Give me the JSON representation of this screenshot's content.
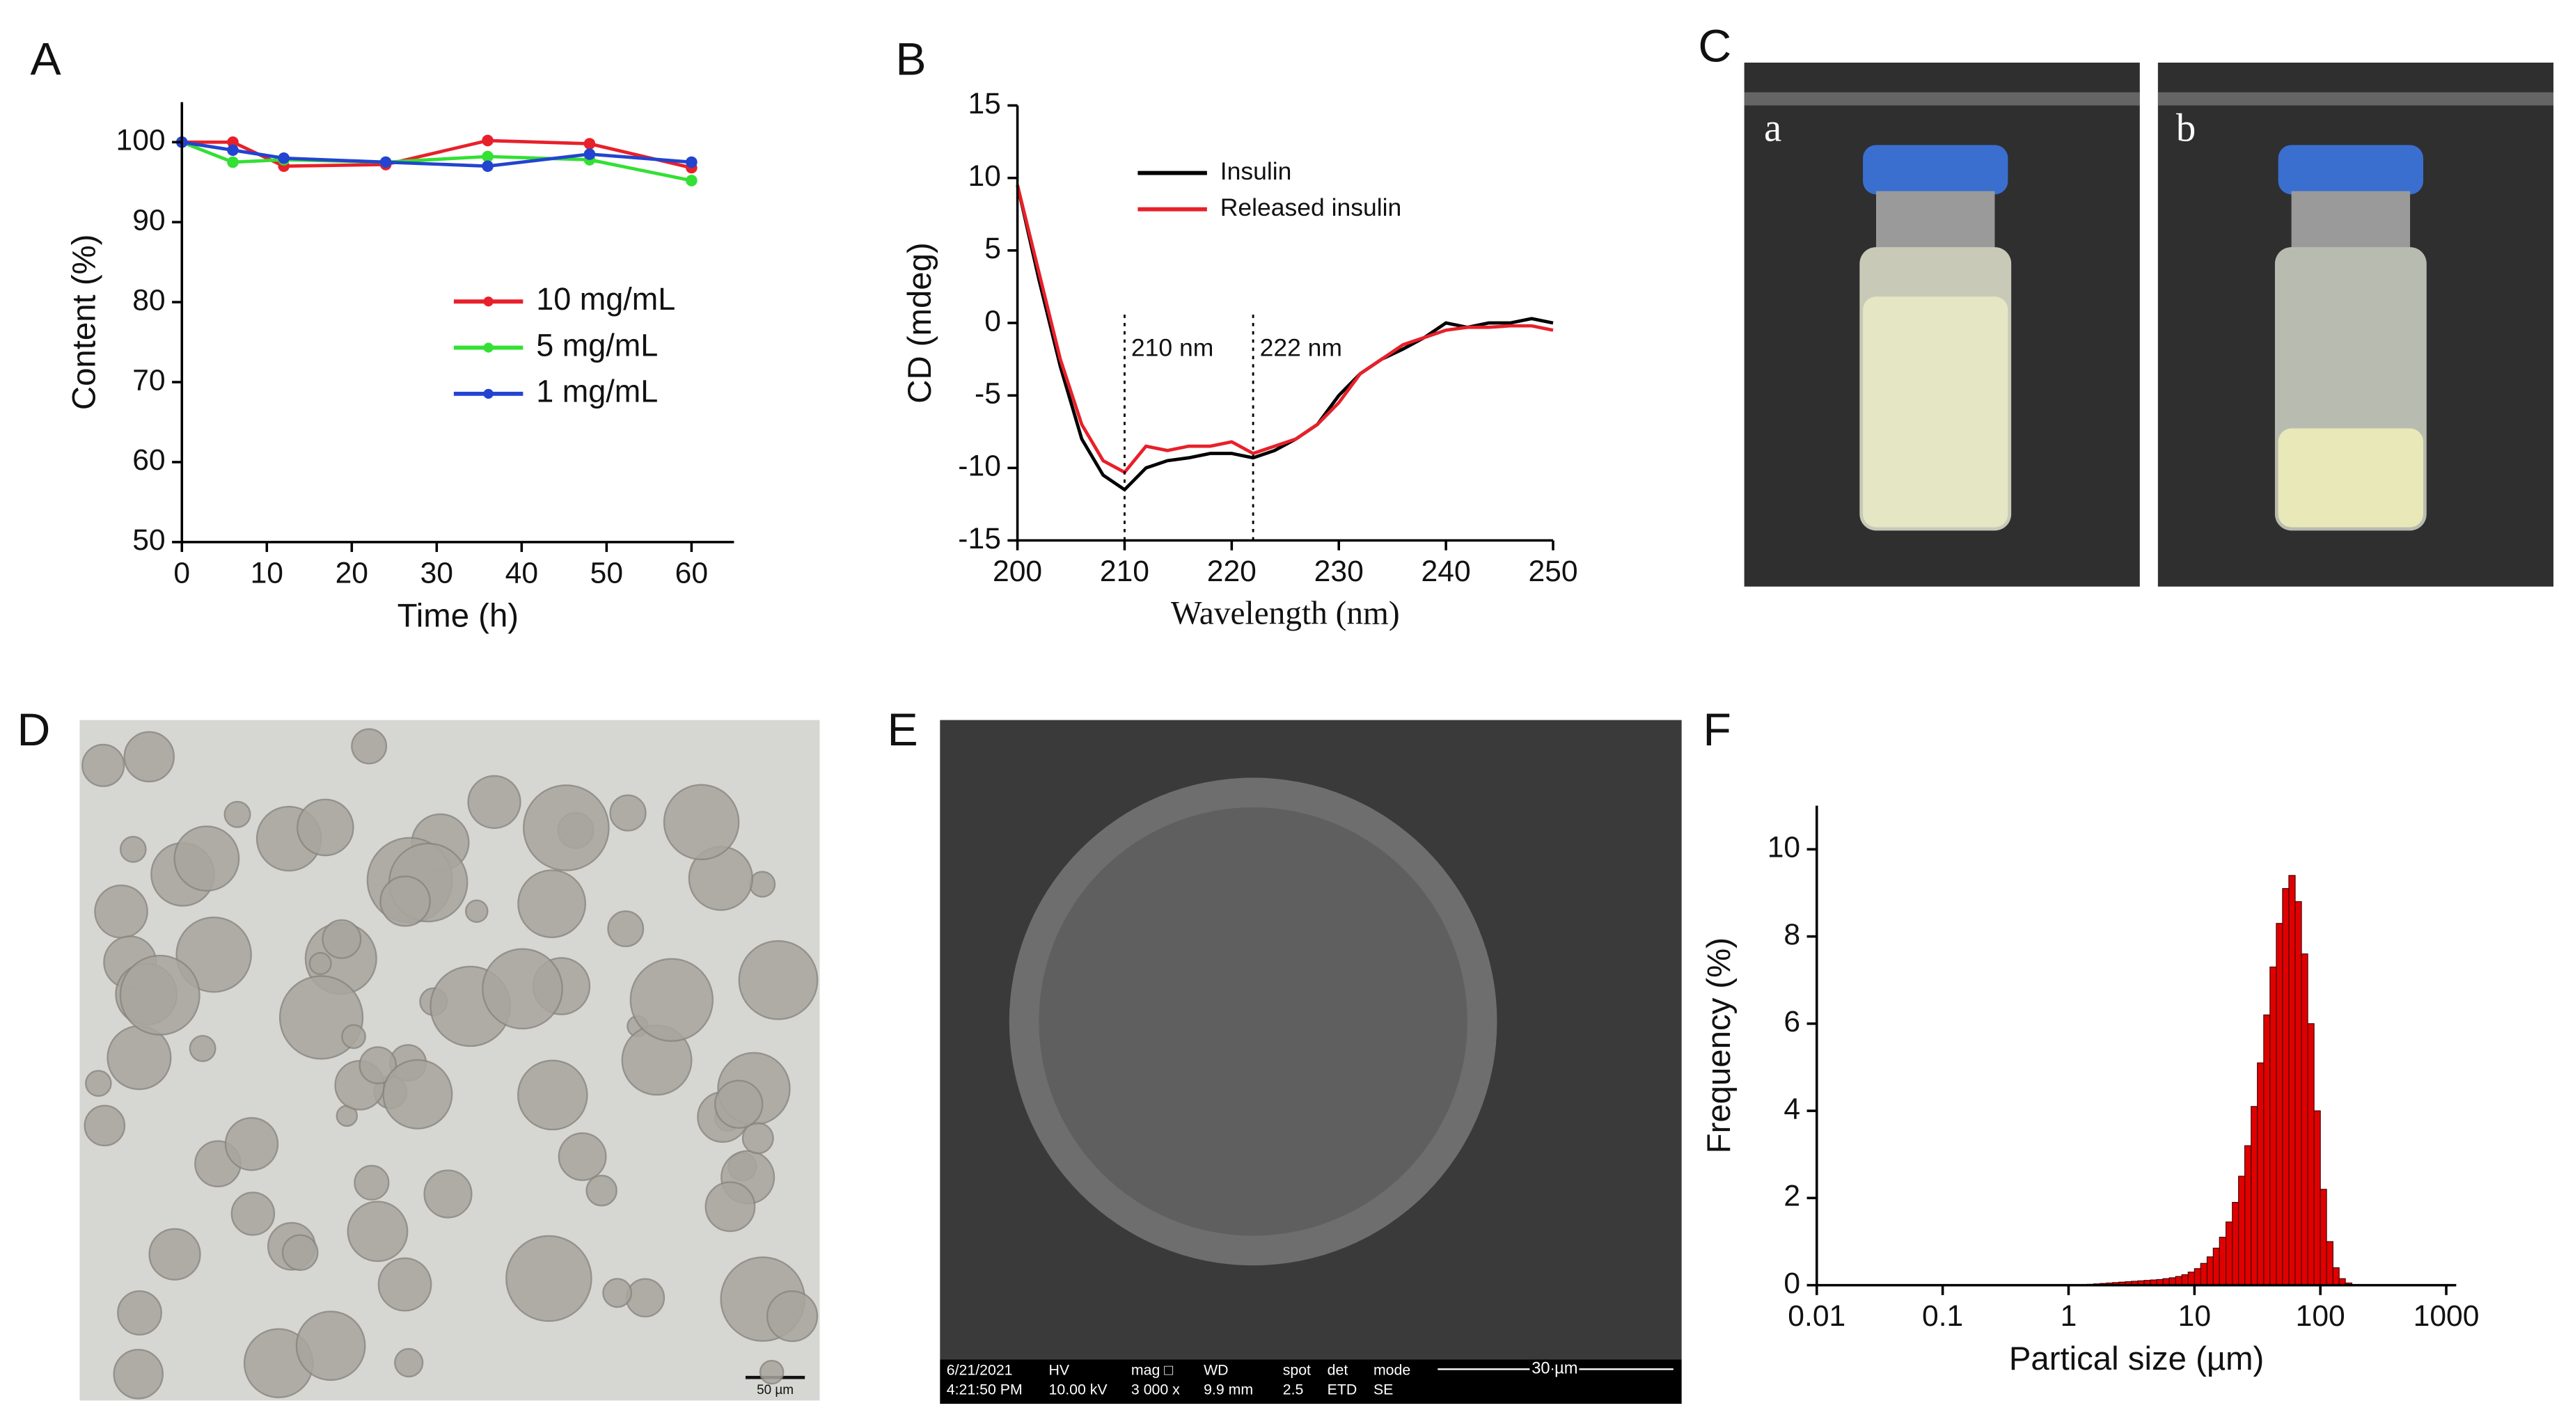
{
  "panel_labels": [
    "A",
    "B",
    "C",
    "D",
    "E",
    "F"
  ],
  "chart_data": [
    {
      "type": "line",
      "markers": true,
      "xlabel": "Time (h)",
      "ylabel": "Content (%)",
      "x": [
        0,
        6,
        12,
        24,
        36,
        48,
        60
      ],
      "series": [
        {
          "name": "10 mg/mL",
          "color": "#e8202a",
          "values": [
            100,
            100,
            97,
            97.2,
            100.2,
            99.8,
            96.8
          ]
        },
        {
          "name": "5 mg/mL",
          "color": "#33e033",
          "values": [
            100,
            97.5,
            97.8,
            97.5,
            98.2,
            97.8,
            95.2
          ]
        },
        {
          "name": "1 mg/mL",
          "color": "#2244d0",
          "values": [
            100,
            99,
            98,
            97.5,
            97,
            98.5,
            97.5
          ]
        }
      ],
      "xlim": [
        0,
        65
      ],
      "xticks": [
        0,
        10,
        20,
        30,
        40,
        50,
        60
      ],
      "ylim": [
        50,
        105
      ],
      "yticks": [
        50,
        60,
        70,
        80,
        90,
        100
      ],
      "legend": "right"
    },
    {
      "type": "line",
      "markers": false,
      "xlabel": "Wavelength (nm)",
      "ylabel": "CD (mdeg)",
      "x": [
        200,
        202,
        204,
        206,
        208,
        210,
        212,
        214,
        216,
        218,
        220,
        222,
        224,
        226,
        228,
        230,
        232,
        234,
        236,
        238,
        240,
        242,
        244,
        246,
        248,
        250
      ],
      "series": [
        {
          "name": "Insulin",
          "color": "#000000",
          "values": [
            9.5,
            3,
            -3,
            -8,
            -10.5,
            -11.5,
            -10,
            -9.5,
            -9.3,
            -9,
            -9,
            -9.3,
            -8.8,
            -8,
            -7,
            -5,
            -3.5,
            -2.5,
            -1.8,
            -1,
            0,
            -0.3,
            0,
            0,
            0.3,
            0
          ]
        },
        {
          "name": "Released insulin",
          "color": "#e8202a",
          "values": [
            9.5,
            3.5,
            -2.5,
            -7,
            -9.5,
            -10.3,
            -8.5,
            -8.8,
            -8.5,
            -8.5,
            -8.2,
            -9,
            -8.5,
            -8,
            -7,
            -5.5,
            -3.5,
            -2.5,
            -1.5,
            -1,
            -0.5,
            -0.3,
            -0.3,
            -0.2,
            -0.2,
            -0.5
          ]
        }
      ],
      "xlim": [
        200,
        250
      ],
      "xticks": [
        200,
        210,
        220,
        230,
        240,
        250
      ],
      "ylim": [
        -15,
        15
      ],
      "yticks": [
        -15,
        -10,
        -5,
        0,
        5,
        10,
        15
      ],
      "legend": "top",
      "annotations": [
        {
          "x": 210,
          "label": "210 nm"
        },
        {
          "x": 222,
          "label": "222 nm"
        }
      ]
    },
    {
      "type": "histogram",
      "xscale": "log",
      "color": "#e00000",
      "xlabel": "Partical size (µm)",
      "ylabel": "Frequency (%)",
      "bins": [
        1,
        1.12,
        1.26,
        1.41,
        1.58,
        1.78,
        2,
        2.24,
        2.51,
        2.82,
        3.16,
        3.55,
        3.98,
        4.47,
        5.01,
        5.62,
        6.31,
        7.08,
        7.94,
        8.91,
        10,
        11.2,
        12.6,
        14.1,
        15.8,
        17.8,
        20,
        22.4,
        25.1,
        28.2,
        31.6,
        35.5,
        39.8,
        44.7,
        50.1,
        56.2,
        63.1,
        70.8,
        79.4,
        89.1,
        100,
        112,
        126,
        141,
        158,
        178,
        200
      ],
      "values": [
        0,
        0,
        0.01,
        0.02,
        0.03,
        0.04,
        0.05,
        0.06,
        0.07,
        0.08,
        0.09,
        0.1,
        0.11,
        0.12,
        0.13,
        0.15,
        0.17,
        0.2,
        0.24,
        0.3,
        0.38,
        0.5,
        0.65,
        0.85,
        1.1,
        1.45,
        1.9,
        2.5,
        3.2,
        4.1,
        5.1,
        6.2,
        7.3,
        8.3,
        9.1,
        9.4,
        8.8,
        7.6,
        6,
        4,
        2.2,
        1,
        0.4,
        0.15,
        0.05,
        0.01
      ],
      "xlim": [
        0.01,
        1200
      ],
      "xticks": [
        0.01,
        0.1,
        1,
        10,
        100,
        1000
      ],
      "ylim": [
        0,
        11
      ],
      "yticks": [
        0,
        2,
        4,
        6,
        8,
        10
      ]
    }
  ],
  "photo_C": {
    "labels": [
      "a",
      "b"
    ]
  },
  "photo_D": {
    "scale_bar": "50 µm"
  },
  "photo_E": {
    "info_bar": [
      [
        "6/21/2021",
        "4:21:50 PM"
      ],
      [
        "HV",
        "10.00 kV"
      ],
      [
        "mag □",
        "3 000 x"
      ],
      [
        "WD",
        "9.9 mm"
      ],
      [
        "spot",
        "2.5"
      ],
      [
        "det",
        "ETD"
      ],
      [
        "mode",
        "SE"
      ]
    ],
    "scale_bar": "30 µm"
  }
}
